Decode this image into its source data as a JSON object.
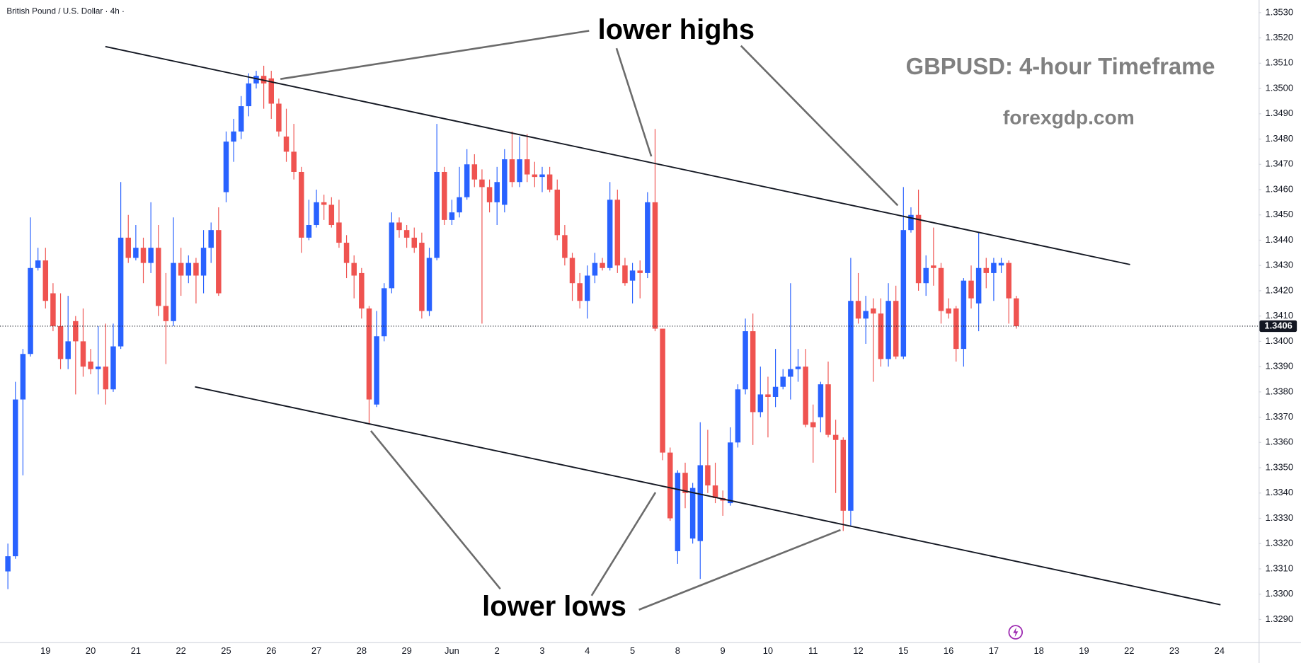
{
  "chart_data": {
    "type": "candlestick",
    "symbol_title": "British Pound / U.S. Dollar · 4h ·",
    "annotations": [
      "lower highs",
      "lower lows",
      "GBPUSD: 4-hour Timeframe",
      "forexgdp.com"
    ],
    "up_color": "#2962ff",
    "down_color": "#ef5350",
    "grid": false,
    "last_price": 1.3406,
    "ylim": [
      1.3281,
      1.3535
    ],
    "yticks": [
      {
        "value": 1.329,
        "label": "1.3290"
      },
      {
        "value": 1.33,
        "label": "1.3300"
      },
      {
        "value": 1.331,
        "label": "1.3310"
      },
      {
        "value": 1.332,
        "label": "1.3320"
      },
      {
        "value": 1.333,
        "label": "1.3330"
      },
      {
        "value": 1.334,
        "label": "1.3340"
      },
      {
        "value": 1.335,
        "label": "1.3350"
      },
      {
        "value": 1.336,
        "label": "1.3360"
      },
      {
        "value": 1.337,
        "label": "1.3370"
      },
      {
        "value": 1.338,
        "label": "1.3380"
      },
      {
        "value": 1.339,
        "label": "1.3390"
      },
      {
        "value": 1.34,
        "label": "1.3400"
      },
      {
        "value": 1.341,
        "label": "1.3410"
      },
      {
        "value": 1.342,
        "label": "1.3420"
      },
      {
        "value": 1.343,
        "label": "1.3430"
      },
      {
        "value": 1.344,
        "label": "1.3440"
      },
      {
        "value": 1.345,
        "label": "1.3450"
      },
      {
        "value": 1.346,
        "label": "1.3460"
      },
      {
        "value": 1.347,
        "label": "1.3470"
      },
      {
        "value": 1.348,
        "label": "1.3480"
      },
      {
        "value": 1.349,
        "label": "1.3490"
      },
      {
        "value": 1.35,
        "label": "1.3500"
      },
      {
        "value": 1.351,
        "label": "1.3510"
      },
      {
        "value": 1.352,
        "label": "1.3520"
      },
      {
        "value": 1.353,
        "label": "1.3530"
      }
    ],
    "categories": [
      null,
      null,
      null,
      null,
      null,
      "19",
      null,
      null,
      null,
      null,
      null,
      "20",
      null,
      null,
      null,
      null,
      null,
      "21",
      null,
      null,
      null,
      null,
      null,
      "22",
      null,
      null,
      null,
      null,
      null,
      "25",
      null,
      null,
      null,
      null,
      null,
      "26",
      null,
      null,
      null,
      null,
      null,
      "27",
      null,
      null,
      null,
      null,
      null,
      "28",
      null,
      null,
      null,
      null,
      null,
      "29",
      null,
      null,
      null,
      null,
      null,
      "Jun",
      null,
      null,
      null,
      null,
      null,
      "2",
      null,
      null,
      null,
      null,
      null,
      "3",
      null,
      null,
      null,
      null,
      null,
      "4",
      null,
      null,
      null,
      null,
      null,
      "5",
      null,
      null,
      null,
      null,
      null,
      "8",
      null,
      null,
      null,
      null,
      null,
      "9",
      null,
      null,
      null,
      null,
      null,
      "10",
      null,
      null,
      null,
      null,
      null,
      "11",
      null,
      null,
      null,
      null,
      null,
      "12",
      null,
      null,
      null,
      null,
      null,
      "15",
      null,
      null,
      null,
      null,
      null,
      "16",
      null,
      null,
      null,
      null,
      null,
      "17",
      null,
      null,
      null,
      null,
      null,
      "18",
      null,
      null,
      null,
      null,
      null,
      "19",
      null,
      null,
      null,
      null,
      null,
      "22",
      null,
      null,
      null,
      null,
      null,
      "23",
      null,
      null,
      null,
      null,
      null,
      "24",
      null,
      null,
      null,
      null
    ],
    "open": [
      1.3309,
      1.3315,
      1.3377,
      1.3395,
      1.3429,
      1.3432,
      1.3419,
      1.3406,
      1.3393,
      1.3408,
      1.34,
      1.3392,
      1.3389,
      1.339,
      1.3381,
      1.3398,
      1.3441,
      1.3433,
      1.3437,
      1.3431,
      1.3437,
      1.3414,
      1.3408,
      1.3431,
      1.3426,
      1.3431,
      1.3426,
      1.3437,
      1.3444,
      1.3459,
      1.3479,
      1.3483,
      1.3493,
      1.3502,
      1.3505,
      1.3504,
      1.3494,
      1.3481,
      1.3475,
      1.3467,
      1.3441,
      1.3446,
      1.3455,
      1.3454,
      1.3447,
      1.3439,
      1.3431,
      1.3427,
      1.3413,
      1.3375,
      1.3402,
      1.3421,
      1.3447,
      1.3444,
      1.3441,
      1.3439,
      1.3412,
      1.3433,
      1.3467,
      1.3448,
      1.3451,
      1.3457,
      1.347,
      1.3464,
      1.3461,
      1.3455,
      1.3454,
      1.3472,
      1.3463,
      1.3472,
      1.3466,
      1.3465,
      1.3466,
      1.346,
      1.3442,
      1.3433,
      1.3423,
      1.3416,
      1.3426,
      1.3431,
      1.3429,
      1.3456,
      1.343,
      1.3424,
      1.3428,
      1.3427,
      1.3455,
      1.3405,
      1.3356,
      1.3317,
      1.3348,
      1.3322,
      1.3321,
      1.3351,
      1.3343,
      1.3338,
      1.3336,
      1.336,
      1.3381,
      1.3404,
      1.3372,
      1.3379,
      1.3378,
      1.3382,
      1.3386,
      1.3389,
      1.339,
      1.3368,
      1.337,
      1.3383,
      1.3363,
      1.3361,
      1.3333,
      1.3416,
      1.3409,
      1.3413,
      1.3411,
      1.3393,
      1.3416,
      1.3394,
      1.3444,
      1.345,
      1.3423,
      1.343,
      1.3429,
      1.3413,
      1.3413,
      1.3397,
      1.3424,
      1.3415,
      1.3429,
      1.3427,
      1.343,
      1.3431,
      1.3417,
      null,
      null,
      null,
      null,
      null,
      null,
      null,
      null,
      null,
      null,
      null,
      null,
      null,
      null,
      null,
      null,
      null,
      null,
      null,
      null,
      null,
      null,
      null,
      null,
      null,
      null,
      null,
      null,
      null,
      null,
      null
    ],
    "high": [
      1.332,
      1.3384,
      1.3397,
      1.3449,
      1.3437,
      1.3437,
      1.3423,
      1.3419,
      1.3418,
      1.341,
      1.3413,
      1.3397,
      1.3406,
      1.3407,
      1.3407,
      1.3463,
      1.345,
      1.3446,
      1.3441,
      1.3455,
      1.3446,
      1.3427,
      1.3449,
      1.3437,
      1.3434,
      1.3433,
      1.3444,
      1.3447,
      1.3453,
      1.3483,
      1.3488,
      1.3497,
      1.3506,
      1.3507,
      1.3509,
      1.3507,
      1.3496,
      1.3492,
      1.3486,
      1.3469,
      1.3456,
      1.346,
      1.3458,
      1.3457,
      1.3456,
      1.3442,
      1.3434,
      1.3429,
      1.3414,
      1.3412,
      1.3423,
      1.3451,
      1.3449,
      1.3446,
      1.3445,
      1.3443,
      1.3437,
      1.3486,
      1.3469,
      1.3456,
      1.3469,
      1.3476,
      1.3474,
      1.3468,
      1.3464,
      1.3469,
      1.3476,
      1.3483,
      1.3481,
      1.3482,
      1.3471,
      1.3469,
      1.3469,
      1.3464,
      1.3446,
      1.3435,
      1.3427,
      1.343,
      1.3435,
      1.3433,
      1.3463,
      1.346,
      1.3433,
      1.3431,
      1.3432,
      1.3459,
      1.3484,
      1.3405,
      1.3358,
      1.3349,
      1.3352,
      1.3344,
      1.3368,
      1.3365,
      1.3352,
      1.3341,
      1.3366,
      1.3383,
      1.3409,
      1.3411,
      1.339,
      1.3386,
      1.3397,
      1.3389,
      1.3423,
      1.3397,
      1.3397,
      1.3375,
      1.3384,
      1.3392,
      1.3369,
      1.3362,
      1.3433,
      1.3427,
      1.3418,
      1.3417,
      1.3417,
      1.3423,
      1.3422,
      1.3461,
      1.3453,
      1.346,
      1.3434,
      1.3445,
      1.3431,
      1.3417,
      1.3414,
      1.3425,
      1.343,
      1.3443,
      1.3433,
      1.3433,
      1.3433,
      1.3432,
      1.3418,
      null,
      null,
      null,
      null,
      null,
      null,
      null,
      null,
      null,
      null,
      null,
      null,
      null,
      null,
      null,
      null,
      null,
      null,
      null,
      null,
      null,
      null,
      null,
      null,
      null,
      null,
      null,
      null,
      null,
      null,
      null
    ],
    "low": [
      1.3302,
      1.3314,
      1.3347,
      1.3394,
      1.3428,
      1.3413,
      1.3404,
      1.3389,
      1.3389,
      1.3379,
      1.3386,
      1.3387,
      1.3379,
      1.3375,
      1.338,
      1.3397,
      1.3431,
      1.3432,
      1.3423,
      1.3427,
      1.341,
      1.3391,
      1.3406,
      1.3418,
      1.3423,
      1.3415,
      1.3419,
      1.3431,
      1.3418,
      1.3455,
      1.3471,
      1.348,
      1.3489,
      1.35,
      1.3492,
      1.3488,
      1.3481,
      1.3471,
      1.3464,
      1.3435,
      1.344,
      1.3445,
      1.3448,
      1.3445,
      1.3437,
      1.3425,
      1.3417,
      1.3409,
      1.3367,
      1.3374,
      1.34,
      1.3419,
      1.3441,
      1.3437,
      1.3435,
      1.3409,
      1.341,
      1.3432,
      1.3446,
      1.3446,
      1.3449,
      1.3456,
      1.3461,
      1.3407,
      1.3451,
      1.3446,
      1.3451,
      1.3461,
      1.3461,
      1.3463,
      1.3461,
      1.3459,
      1.3459,
      1.344,
      1.343,
      1.3416,
      1.3413,
      1.3409,
      1.3423,
      1.3428,
      1.3428,
      1.3427,
      1.3422,
      1.3415,
      1.3417,
      1.3425,
      1.3404,
      1.3353,
      1.3329,
      1.3312,
      1.3334,
      1.332,
      1.3306,
      1.334,
      1.3336,
      1.3331,
      1.3335,
      1.3358,
      1.3379,
      1.3359,
      1.337,
      1.3362,
      1.3374,
      1.3381,
      1.3377,
      1.3384,
      1.3366,
      1.3352,
      1.3364,
      1.3362,
      1.334,
      1.3325,
      1.3327,
      1.3407,
      1.3399,
      1.3384,
      1.339,
      1.339,
      1.3393,
      1.3393,
      1.3443,
      1.342,
      1.3418,
      1.3422,
      1.3407,
      1.3409,
      1.3392,
      1.339,
      1.3413,
      1.3404,
      1.3421,
      1.3416,
      1.3427,
      1.3407,
      1.3405,
      null,
      null,
      null,
      null,
      null,
      null,
      null,
      null,
      null,
      null,
      null,
      null,
      null,
      null,
      null,
      null,
      null,
      null,
      null,
      null,
      null,
      null,
      null,
      null,
      null,
      null,
      null,
      null,
      null,
      null,
      null
    ],
    "close": [
      1.3315,
      1.3377,
      1.3395,
      1.3429,
      1.3432,
      1.3416,
      1.3406,
      1.3393,
      1.34,
      1.34,
      1.339,
      1.3389,
      1.339,
      1.3381,
      1.3398,
      1.3441,
      1.3433,
      1.3437,
      1.3431,
      1.3437,
      1.3414,
      1.3408,
      1.3431,
      1.3426,
      1.3431,
      1.3426,
      1.3437,
      1.3444,
      1.3419,
      1.3479,
      1.3483,
      1.3493,
      1.3502,
      1.3505,
      1.3502,
      1.3494,
      1.3483,
      1.3475,
      1.3467,
      1.3441,
      1.3446,
      1.3455,
      1.3454,
      1.3446,
      1.3439,
      1.3431,
      1.3426,
      1.3413,
      1.3377,
      1.3402,
      1.3421,
      1.3447,
      1.3444,
      1.3441,
      1.3437,
      1.3412,
      1.3433,
      1.3467,
      1.3448,
      1.3451,
      1.3457,
      1.347,
      1.3464,
      1.3461,
      1.3455,
      1.3463,
      1.3472,
      1.3463,
      1.3472,
      1.3466,
      1.3465,
      1.3466,
      1.346,
      1.3442,
      1.3433,
      1.3423,
      1.3416,
      1.3426,
      1.3431,
      1.3429,
      1.3456,
      1.343,
      1.3423,
      1.3428,
      1.3427,
      1.3455,
      1.3405,
      1.3356,
      1.333,
      1.3348,
      1.334,
      1.3342,
      1.3351,
      1.3343,
      1.3338,
      1.3337,
      1.336,
      1.3381,
      1.3404,
      1.3372,
      1.3379,
      1.3378,
      1.3382,
      1.3386,
      1.3389,
      1.339,
      1.3367,
      1.3366,
      1.3383,
      1.3363,
      1.3361,
      1.3333,
      1.3416,
      1.3409,
      1.3412,
      1.3411,
      1.3393,
      1.3416,
      1.3394,
      1.3444,
      1.345,
      1.3423,
      1.3429,
      1.3429,
      1.3412,
      1.3411,
      1.3397,
      1.3424,
      1.3417,
      1.3429,
      1.3427,
      1.3431,
      1.3431,
      1.3417,
      1.3406,
      null,
      null,
      null,
      null,
      null,
      null,
      null,
      null,
      null,
      null,
      null,
      null,
      null,
      null,
      null,
      null,
      null,
      null,
      null,
      null,
      null,
      null,
      null,
      null,
      null,
      null,
      null,
      null,
      null,
      null,
      null
    ]
  }
}
